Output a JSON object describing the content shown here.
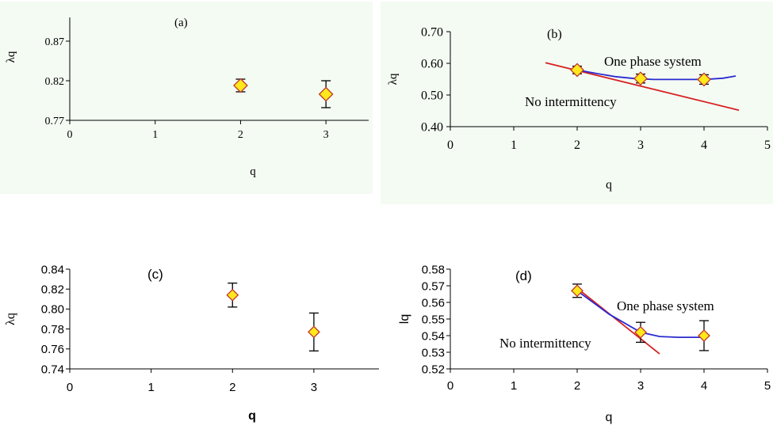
{
  "chart_data": [
    {
      "id": "a",
      "type": "scatter",
      "panel_label": "(a)",
      "xlabel": "q",
      "ylabel": "λq",
      "xlim": [
        0,
        3.5
      ],
      "ylim": [
        0.77,
        0.9
      ],
      "xticks": [
        "0",
        "1",
        "2",
        "3"
      ],
      "yticks": [
        "0.77",
        "0.82",
        "0.87"
      ],
      "series": [
        {
          "x": [
            2,
            3
          ],
          "y": [
            0.814,
            0.803
          ],
          "err": [
            0.008,
            0.017
          ],
          "marker": "diamond"
        }
      ],
      "lines": [],
      "annotations": [],
      "background": "#f4fbf3",
      "marker_fill": "#ffe81c"
    },
    {
      "id": "b",
      "type": "scatter",
      "panel_label": "(b)",
      "xlabel": "q",
      "ylabel": "λq",
      "xlim": [
        0,
        5
      ],
      "ylim": [
        0.4,
        0.7
      ],
      "xticks": [
        "0",
        "1",
        "2",
        "3",
        "4",
        "5"
      ],
      "yticks": [
        "0.40",
        "0.50",
        "0.60",
        "0.70"
      ],
      "series": [
        {
          "x": [
            2,
            3,
            4
          ],
          "y": [
            0.579,
            0.552,
            0.549
          ],
          "err": [
            0.012,
            0.014,
            0.015
          ],
          "marker": "diamond"
        }
      ],
      "lines": [
        {
          "x": [
            1.5,
            4.55
          ],
          "y": [
            0.602,
            0.452
          ],
          "color": "#d62020"
        },
        {
          "x": [
            2,
            2.3,
            2.6,
            2.9,
            3.2,
            3.6,
            4.0,
            4.3,
            4.5
          ],
          "y": [
            0.579,
            0.568,
            0.558,
            0.552,
            0.549,
            0.549,
            0.549,
            0.553,
            0.56
          ],
          "color": "#2a2ad0"
        }
      ],
      "annotations": [
        "One phase system",
        "No intermittency"
      ],
      "background": "#f4fbf3",
      "marker_fill": "#ffe81c"
    },
    {
      "id": "c",
      "type": "scatter",
      "panel_label": "(c)",
      "xlabel": "q",
      "ylabel": "λq",
      "xlim": [
        0,
        3.8
      ],
      "ylim": [
        0.74,
        0.84
      ],
      "xticks": [
        "0",
        "1",
        "2",
        "3"
      ],
      "yticks": [
        "0.74",
        "0.76",
        "0.78",
        "0.80",
        "0.82",
        "0.84"
      ],
      "series": [
        {
          "x": [
            2,
            3
          ],
          "y": [
            0.814,
            0.777
          ],
          "err": [
            0.012,
            0.019
          ],
          "marker": "diamond"
        }
      ],
      "lines": [],
      "annotations": [],
      "background": "#ffffff",
      "marker_fill": "#ffe81c"
    },
    {
      "id": "d",
      "type": "scatter",
      "panel_label": "(d)",
      "xlabel": "q",
      "ylabel": "lq",
      "xlim": [
        0,
        5
      ],
      "ylim": [
        0.52,
        0.58
      ],
      "xticks": [
        "0",
        "1",
        "2",
        "3",
        "4",
        "5"
      ],
      "yticks": [
        "0.52",
        "0.53",
        "0.54",
        "0.55",
        "0.56",
        "0.57",
        "0.58"
      ],
      "series": [
        {
          "x": [
            2,
            3,
            4
          ],
          "y": [
            0.567,
            0.542,
            0.54
          ],
          "err": [
            0.004,
            0.006,
            0.009
          ],
          "marker": "diamond"
        }
      ],
      "lines": [
        {
          "x": [
            2,
            3.3
          ],
          "y": [
            0.5685,
            0.529
          ],
          "color": "#d62020"
        },
        {
          "x": [
            2,
            2.5,
            3.0,
            3.3,
            3.6,
            4.0
          ],
          "y": [
            0.567,
            0.553,
            0.542,
            0.5395,
            0.539,
            0.539
          ],
          "color": "#2a2ad0"
        }
      ],
      "annotations": [
        "One phase system",
        "No intermittency"
      ],
      "background": "#ffffff",
      "marker_fill": "#ffe81c"
    }
  ]
}
